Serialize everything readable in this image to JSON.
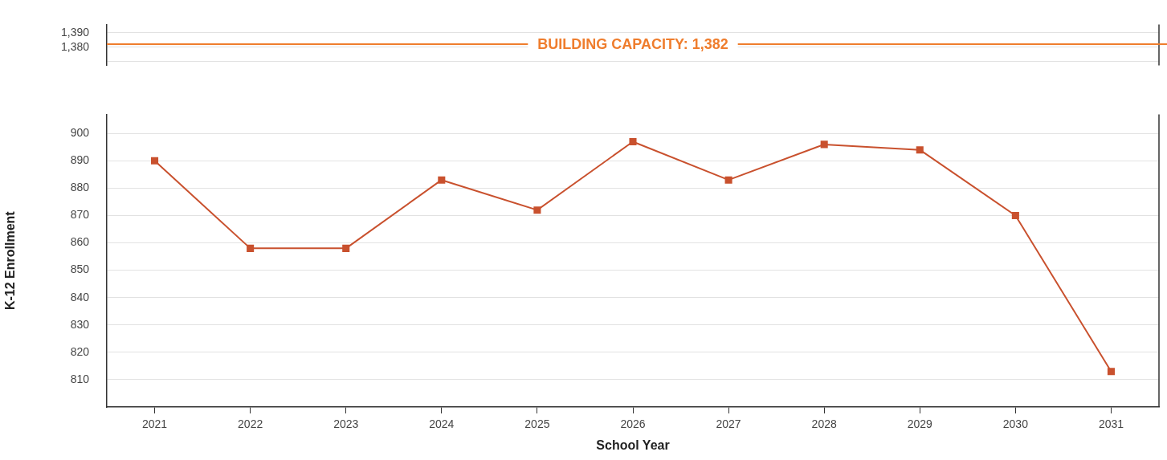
{
  "chart_data": [
    {
      "type": "line",
      "categories": [
        "2021",
        "2022",
        "2023",
        "2024",
        "2025",
        "2026",
        "2027",
        "2028",
        "2029",
        "2030",
        "2031"
      ],
      "values": [
        null,
        null,
        null,
        null,
        null,
        null,
        null,
        null,
        null,
        null,
        null
      ],
      "ylim": [
        1367,
        1396
      ],
      "yticks": [
        {
          "value": 1370,
          "label": null
        },
        {
          "value": 1380,
          "label": "1,380"
        },
        {
          "value": 1390,
          "label": "1,390"
        }
      ],
      "grid": "y",
      "tick_labels": "y",
      "ref_lines": [
        {
          "axis": "y",
          "value": 1382,
          "label": "BUILDING CAPACITY: 1,382",
          "color": "#ef7d2d"
        }
      ]
    },
    {
      "type": "line",
      "xlabel": "School Year",
      "ylabel": "K-12 Enrollment",
      "categories": [
        "2021",
        "2022",
        "2023",
        "2024",
        "2025",
        "2026",
        "2027",
        "2028",
        "2029",
        "2030",
        "2031"
      ],
      "series": [
        {
          "color": "#c9512e",
          "values": [
            890,
            858,
            858,
            883,
            872,
            897,
            883,
            896,
            894,
            870,
            813
          ]
        }
      ],
      "ylim": [
        800,
        907
      ],
      "yticks": [
        810,
        820,
        830,
        840,
        850,
        860,
        870,
        880,
        890,
        900
      ],
      "grid": "y",
      "marker": "square"
    }
  ]
}
